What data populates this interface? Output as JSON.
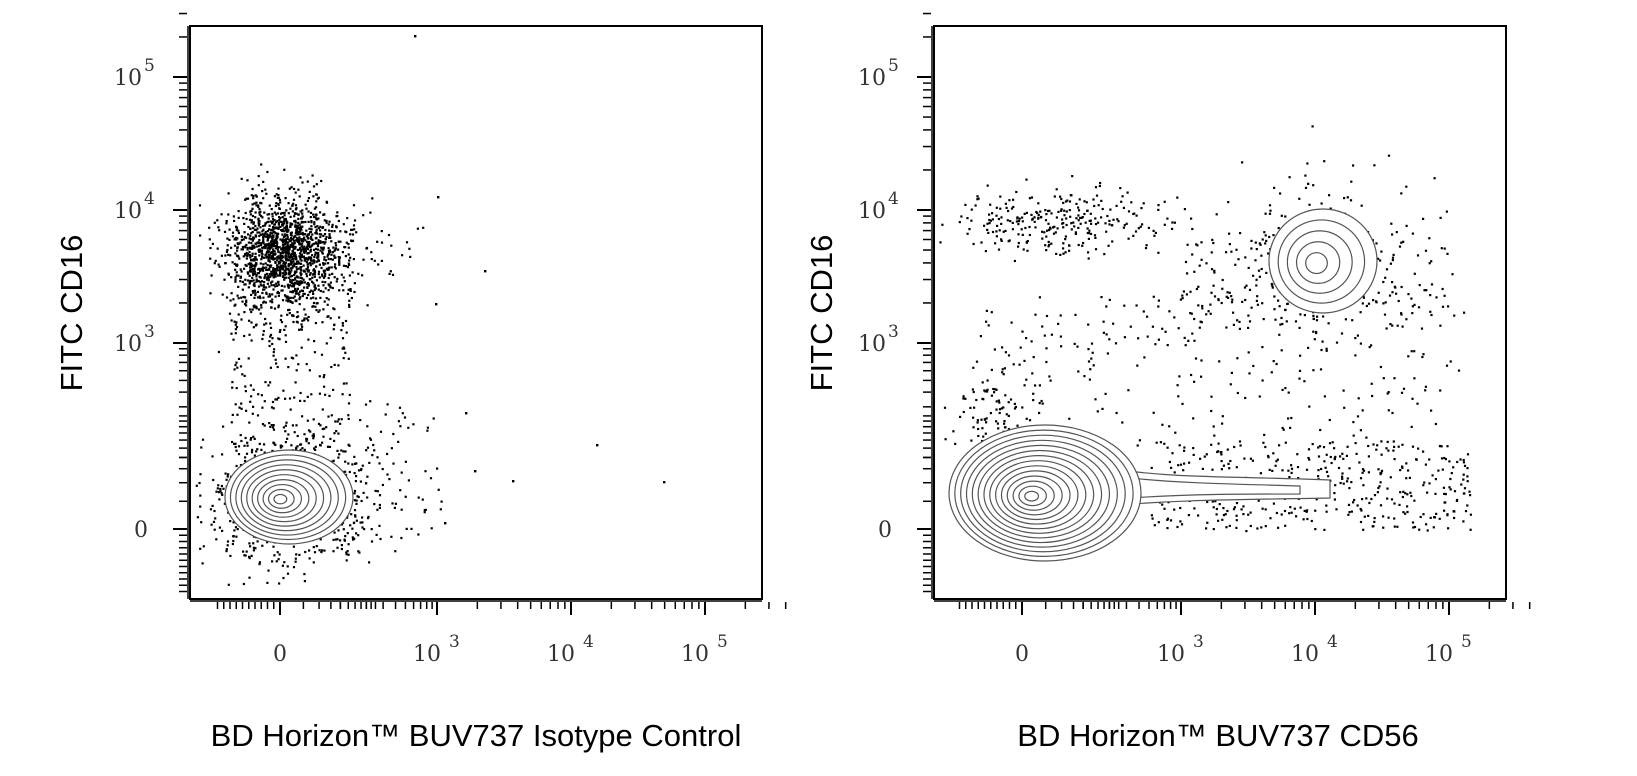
{
  "chart_data": [
    {
      "type": "scatter",
      "subtype": "flow-cytometry-contour-dot-plot",
      "xlabel": "BD Horizon™ BUV737 Isotype Control",
      "ylabel": "FITC  CD16",
      "xscale": "biexponential",
      "yscale": "biexponential",
      "x_ticks": [
        {
          "label": "0",
          "value": 0
        },
        {
          "label": "10",
          "sup": "3",
          "value": 1000
        },
        {
          "label": "10",
          "sup": "4",
          "value": 10000
        },
        {
          "label": "10",
          "sup": "5",
          "value": 100000
        }
      ],
      "y_ticks": [
        {
          "label": "0",
          "value": 0
        },
        {
          "label": "10",
          "sup": "3",
          "value": 1000
        },
        {
          "label": "10",
          "sup": "4",
          "value": 10000
        },
        {
          "label": "10",
          "sup": "5",
          "value": 100000
        }
      ],
      "xlim": [
        -300,
        200000
      ],
      "ylim": [
        -300,
        250000
      ],
      "populations": [
        {
          "name": "",
          "x": 0,
          "y": 4500,
          "display": "dots"
        },
        {
          "name": "",
          "x": 0,
          "y": 40,
          "display": "contours"
        }
      ],
      "grid": false
    },
    {
      "type": "scatter",
      "subtype": "flow-cytometry-contour-dot-plot",
      "xlabel": "BD Horizon™ BUV737 CD56",
      "ylabel": "FITC  CD16",
      "xscale": "biexponential",
      "yscale": "biexponential",
      "x_ticks": [
        {
          "label": "0",
          "value": 0
        },
        {
          "label": "10",
          "sup": "3",
          "value": 1000
        },
        {
          "label": "10",
          "sup": "4",
          "value": 10000
        },
        {
          "label": "10",
          "sup": "5",
          "value": 100000
        }
      ],
      "y_ticks": [
        {
          "label": "0",
          "value": 0
        },
        {
          "label": "10",
          "sup": "3",
          "value": 1000
        },
        {
          "label": "10",
          "sup": "4",
          "value": 10000
        },
        {
          "label": "10",
          "sup": "5",
          "value": 100000
        }
      ],
      "xlim": [
        -300,
        200000
      ],
      "ylim": [
        -300,
        250000
      ],
      "populations": [
        {
          "name": "",
          "x": 0,
          "y": 40,
          "display": "contours"
        },
        {
          "name": "",
          "x": 12000,
          "y": 4500,
          "display": "contours"
        },
        {
          "name": "",
          "x": 100,
          "y": 8000,
          "display": "dots"
        }
      ],
      "grid": false
    }
  ]
}
